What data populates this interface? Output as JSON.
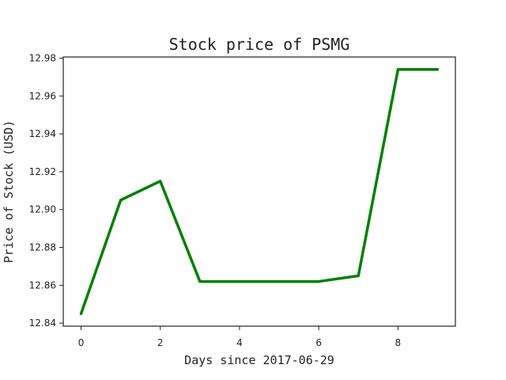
{
  "chart_data": {
    "type": "line",
    "title": "Stock price of PSMG",
    "xlabel": "Days since 2017-06-29",
    "ylabel": "Price of Stock (USD)",
    "x": [
      0,
      1,
      2,
      3,
      4,
      5,
      6,
      7,
      8,
      9
    ],
    "series": [
      {
        "values": [
          12.845,
          12.905,
          12.915,
          12.862,
          12.862,
          12.862,
          12.862,
          12.865,
          12.974,
          12.974
        ],
        "color": "#008000"
      }
    ],
    "xlim": [
      -0.45,
      9.45
    ],
    "ylim": [
      12.8384,
      12.9806
    ],
    "xticks": [
      0,
      2,
      4,
      6,
      8
    ],
    "xtick_labels": [
      "0",
      "2",
      "4",
      "6",
      "8"
    ],
    "yticks": [
      12.84,
      12.86,
      12.88,
      12.9,
      12.92,
      12.94,
      12.96,
      12.98
    ],
    "ytick_labels": [
      "12.84",
      "12.86",
      "12.88",
      "12.90",
      "12.92",
      "12.94",
      "12.96",
      "12.98"
    ],
    "grid": false,
    "legend": "none"
  }
}
